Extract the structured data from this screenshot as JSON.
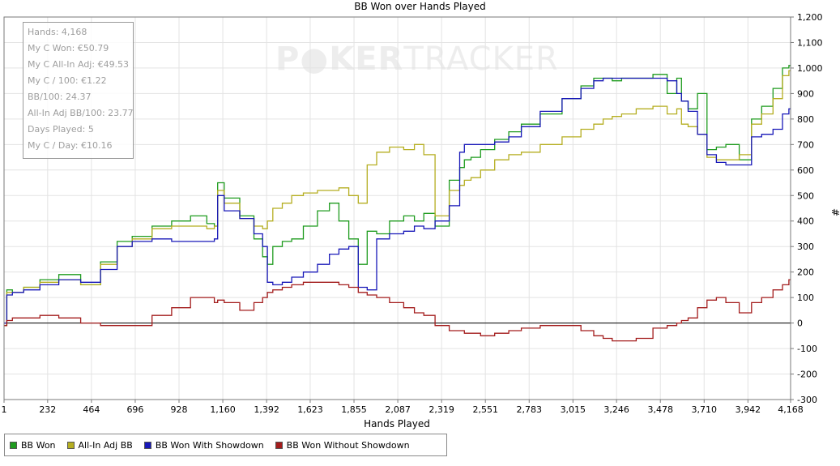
{
  "watermark": {
    "part1": "P●KER",
    "part2": "TRACKER"
  },
  "stats": {
    "hands": "Hands: 4,168",
    "won": "My C Won: €50.79",
    "allin_adj": "My C All-In Adj: €49.53",
    "per100": "My C / 100: €1.22",
    "bb100": "BB/100: 24.37",
    "allin_bb100": "All-In Adj BB/100: 23.77",
    "days": "Days Played: 5",
    "per_day": "My C / Day: €10.16"
  },
  "chart_data": {
    "type": "line",
    "title": "BB Won over Hands Played",
    "xlabel": "Hands Played",
    "ylabel": "#",
    "xlim": [
      1,
      4168
    ],
    "ylim": [
      -300,
      1200
    ],
    "grid": true,
    "legend_position": "bottom-left",
    "x_ticks": [
      "1",
      "232",
      "464",
      "696",
      "928",
      "1,160",
      "1,392",
      "1,623",
      "1,855",
      "2,087",
      "2,319",
      "2,551",
      "2,783",
      "3,015",
      "3,246",
      "3,478",
      "3,710",
      "3,942",
      "4,168"
    ],
    "y_ticks": [
      "-300",
      "-200",
      "-100",
      "0",
      "100",
      "200",
      "300",
      "400",
      "500",
      "600",
      "700",
      "800",
      "900",
      "1,000",
      "1,100",
      "1,200"
    ],
    "series": [
      {
        "name": "BB Won",
        "color": "#1e9b1e",
        "x": [
          1,
          30,
          60,
          150,
          232,
          350,
          464,
          560,
          640,
          720,
          850,
          928,
          1050,
          1100,
          1130,
          1135,
          1200,
          1300,
          1350,
          1392,
          1400,
          1450,
          1500,
          1550,
          1623,
          1700,
          1750,
          1800,
          1855,
          1900,
          1950,
          2000,
          2087,
          2150,
          2200,
          2250,
          2319,
          2400,
          2430,
          2450,
          2500,
          2551,
          2650,
          2700,
          2783,
          2900,
          3015,
          3100,
          3150,
          3200,
          3246,
          3300,
          3400,
          3478,
          3550,
          3580,
          3600,
          3650,
          3700,
          3750,
          3800,
          3850,
          3942,
          3980,
          4050,
          4100,
          4150,
          4168
        ],
        "y": [
          -10,
          130,
          120,
          140,
          170,
          190,
          150,
          240,
          320,
          340,
          380,
          400,
          420,
          390,
          380,
          550,
          490,
          420,
          330,
          260,
          230,
          300,
          320,
          330,
          380,
          440,
          470,
          400,
          330,
          230,
          360,
          350,
          400,
          420,
          400,
          430,
          380,
          560,
          610,
          640,
          650,
          680,
          720,
          750,
          780,
          820,
          880,
          930,
          960,
          960,
          950,
          960,
          960,
          975,
          900,
          960,
          870,
          840,
          900,
          680,
          690,
          700,
          640,
          800,
          850,
          920,
          1000,
          1010
        ]
      },
      {
        "name": "All-In Adj BB",
        "color": "#b5ae21",
        "x": [
          1,
          30,
          60,
          150,
          232,
          350,
          464,
          560,
          640,
          720,
          850,
          928,
          1050,
          1100,
          1130,
          1135,
          1200,
          1300,
          1350,
          1392,
          1400,
          1450,
          1500,
          1550,
          1623,
          1700,
          1750,
          1800,
          1855,
          1900,
          1950,
          2000,
          2087,
          2150,
          2200,
          2250,
          2319,
          2400,
          2430,
          2450,
          2500,
          2551,
          2650,
          2700,
          2783,
          2900,
          3015,
          3100,
          3150,
          3200,
          3246,
          3300,
          3400,
          3478,
          3550,
          3580,
          3600,
          3650,
          3700,
          3750,
          3800,
          3850,
          3942,
          3980,
          4050,
          4100,
          4150,
          4168
        ],
        "y": [
          -10,
          120,
          120,
          140,
          160,
          170,
          150,
          230,
          300,
          330,
          370,
          380,
          380,
          370,
          380,
          520,
          470,
          410,
          380,
          370,
          400,
          450,
          470,
          500,
          510,
          520,
          520,
          530,
          500,
          470,
          620,
          670,
          690,
          680,
          700,
          660,
          420,
          520,
          540,
          560,
          570,
          600,
          640,
          660,
          670,
          700,
          730,
          760,
          780,
          800,
          810,
          820,
          840,
          850,
          820,
          840,
          780,
          770,
          740,
          650,
          640,
          640,
          660,
          780,
          820,
          880,
          970,
          990
        ]
      },
      {
        "name": "BB Won With Showdown",
        "color": "#1818b8",
        "x": [
          1,
          30,
          60,
          150,
          232,
          350,
          464,
          560,
          640,
          720,
          850,
          928,
          1050,
          1100,
          1130,
          1135,
          1200,
          1300,
          1350,
          1392,
          1400,
          1450,
          1500,
          1550,
          1623,
          1700,
          1750,
          1800,
          1855,
          1900,
          1950,
          2000,
          2087,
          2150,
          2200,
          2250,
          2319,
          2400,
          2430,
          2450,
          2500,
          2551,
          2650,
          2700,
          2783,
          2900,
          3015,
          3100,
          3150,
          3200,
          3246,
          3300,
          3400,
          3478,
          3550,
          3580,
          3600,
          3650,
          3700,
          3750,
          3800,
          3850,
          3942,
          3980,
          4050,
          4100,
          4150,
          4168
        ],
        "y": [
          0,
          110,
          120,
          130,
          150,
          170,
          160,
          210,
          300,
          320,
          330,
          320,
          320,
          320,
          330,
          500,
          440,
          410,
          350,
          300,
          160,
          150,
          160,
          180,
          200,
          230,
          270,
          290,
          300,
          140,
          130,
          330,
          350,
          360,
          380,
          370,
          400,
          460,
          670,
          700,
          700,
          700,
          710,
          730,
          770,
          830,
          880,
          920,
          950,
          960,
          960,
          960,
          960,
          960,
          950,
          900,
          870,
          830,
          740,
          660,
          630,
          620,
          620,
          730,
          740,
          760,
          820,
          840
        ]
      },
      {
        "name": "BB Won Without Showdown",
        "color": "#a31c1c",
        "x": [
          1,
          30,
          60,
          150,
          232,
          350,
          464,
          560,
          640,
          720,
          850,
          928,
          1050,
          1100,
          1130,
          1135,
          1200,
          1300,
          1350,
          1392,
          1400,
          1450,
          1500,
          1550,
          1623,
          1700,
          1750,
          1800,
          1855,
          1900,
          1950,
          2000,
          2087,
          2150,
          2200,
          2250,
          2319,
          2400,
          2430,
          2450,
          2500,
          2551,
          2650,
          2700,
          2783,
          2900,
          3015,
          3100,
          3150,
          3200,
          3246,
          3300,
          3400,
          3478,
          3550,
          3580,
          3600,
          3650,
          3700,
          3750,
          3800,
          3850,
          3942,
          3980,
          4050,
          4100,
          4150,
          4168
        ],
        "y": [
          -10,
          10,
          20,
          20,
          30,
          20,
          0,
          -10,
          -10,
          -10,
          30,
          60,
          100,
          100,
          80,
          90,
          80,
          50,
          80,
          100,
          120,
          130,
          140,
          150,
          160,
          160,
          160,
          150,
          140,
          120,
          110,
          100,
          80,
          60,
          40,
          30,
          -10,
          -30,
          -30,
          -40,
          -40,
          -50,
          -40,
          -30,
          -20,
          -10,
          -10,
          -30,
          -50,
          -60,
          -70,
          -70,
          -60,
          -20,
          -10,
          0,
          10,
          20,
          60,
          90,
          100,
          80,
          40,
          80,
          100,
          130,
          150,
          170
        ]
      }
    ]
  }
}
